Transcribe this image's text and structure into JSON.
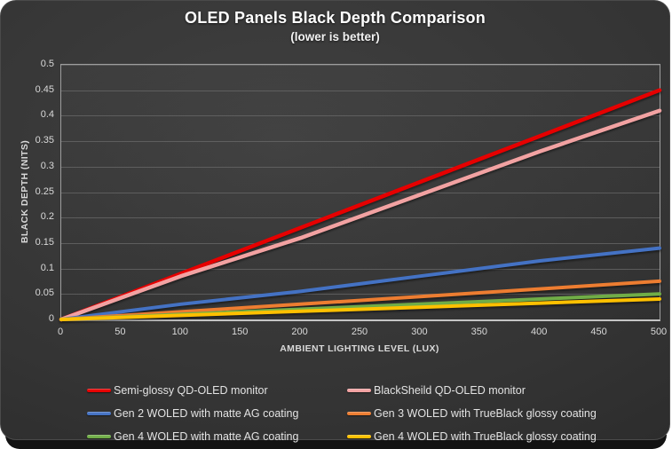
{
  "window": {
    "page_background": "#ffffff",
    "slide_background_center": "#404040",
    "slide_background_edge": "#232323",
    "under_strip_color": "#131313"
  },
  "header": {
    "title": "OLED Panels Black Depth Comparison",
    "subtitle": "(lower is better)"
  },
  "chart_data": {
    "type": "line",
    "title": "OLED Panels Black Depth Comparison",
    "subtitle": "(lower is better)",
    "xlabel": "AMBIENT LIGHTING LEVEL (LUX)",
    "ylabel": "BLACK DEPTH (NITS)",
    "xlim": [
      0,
      500
    ],
    "ylim": [
      0,
      0.5
    ],
    "x_tick_values": [
      0,
      50,
      100,
      150,
      200,
      250,
      300,
      350,
      400,
      450,
      500
    ],
    "x_tick_labels": [
      "0",
      "50",
      "100",
      "150",
      "200",
      "250",
      "300",
      "350",
      "400",
      "450",
      "500"
    ],
    "y_tick_values": [
      0,
      0.05,
      0.1,
      0.15,
      0.2,
      0.25,
      0.3,
      0.35,
      0.4,
      0.45,
      0.5
    ],
    "y_tick_labels": [
      "0",
      "0.05",
      "0.1",
      "0.15",
      "0.2",
      "0.25",
      "0.3",
      "0.35",
      "0.4",
      "0.45",
      "0.5"
    ],
    "grid": "horizontal",
    "legend_position": "bottom",
    "x": [
      0,
      100,
      200,
      300,
      400,
      500
    ],
    "series": [
      {
        "name": "Semi-glossy QD-OLED monitor",
        "color": "#e60000",
        "values": [
          0,
          0.09,
          0.18,
          0.27,
          0.36,
          0.45
        ]
      },
      {
        "name": "BlackSheild QD-OLED monitor",
        "color": "#f2a2a2",
        "values": [
          0,
          0.085,
          0.16,
          0.245,
          0.33,
          0.41
        ]
      },
      {
        "name": "Gen 2 WOLED with matte AG coating",
        "color": "#4472c4",
        "values": [
          0,
          0.03,
          0.055,
          0.085,
          0.115,
          0.14
        ]
      },
      {
        "name": "Gen 3 WOLED with TrueBlack glossy coating",
        "color": "#ed7d31",
        "values": [
          0,
          0.015,
          0.03,
          0.045,
          0.06,
          0.075
        ]
      },
      {
        "name": "Gen 4 WOLED with matte AG coating",
        "color": "#70ad47",
        "values": [
          0,
          0.01,
          0.02,
          0.03,
          0.04,
          0.05
        ]
      },
      {
        "name": "Gen 4 WOLED with TrueBlack glossy coating",
        "color": "#ffc000",
        "values": [
          0,
          0.008,
          0.016,
          0.024,
          0.032,
          0.04
        ]
      }
    ],
    "colors": {
      "gridline": "#6a6a6a",
      "plot_border": "#9e9e9e",
      "axis_line": "#c4c4c4",
      "tick_text": "#d9d9d9",
      "legend_text": "#e3e3e3",
      "title_text": "#ffffff"
    }
  }
}
